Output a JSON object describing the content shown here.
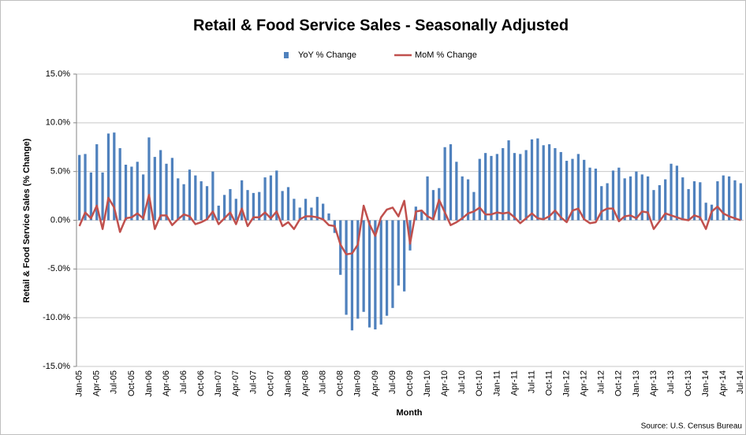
{
  "chart_data": {
    "type": "bar_line",
    "title": "Retail & Food Service Sales - Seasonally Adjusted",
    "x_label": "Month",
    "y_label": "Retail & Food Service Sales (% Change)",
    "source": "Source: U.S. Census Bureau",
    "categories": [
      "Jan-05",
      null,
      null,
      "Apr-05",
      null,
      null,
      "Jul-05",
      null,
      null,
      "Oct-05",
      null,
      null,
      "Jan-06",
      null,
      null,
      "Apr-06",
      null,
      null,
      "Jul-06",
      null,
      null,
      "Oct-06",
      null,
      null,
      "Jan-07",
      null,
      null,
      "Apr-07",
      null,
      null,
      "Jul-07",
      null,
      null,
      "Oct-07",
      null,
      null,
      "Jan-08",
      null,
      null,
      "Apr-08",
      null,
      null,
      "Jul-08",
      null,
      null,
      "Oct-08",
      null,
      null,
      "Jan-09",
      null,
      null,
      "Apr-09",
      null,
      null,
      "Jul-09",
      null,
      null,
      "Oct-09",
      null,
      null,
      "Jan-10",
      null,
      null,
      "Apr-10",
      null,
      null,
      "Jul-10",
      null,
      null,
      "Oct-10",
      null,
      null,
      "Jan-11",
      null,
      null,
      "Apr-11",
      null,
      null,
      "Jul-11",
      null,
      null,
      "Oct-11",
      null,
      null,
      "Jan-12",
      null,
      null,
      "Apr-12",
      null,
      null,
      "Jul-12",
      null,
      null,
      "Oct-12",
      null,
      null,
      "Jan-13",
      null,
      null,
      "Apr-13",
      null,
      null,
      "Jul-13",
      null,
      null,
      "Oct-13",
      null,
      null,
      "Jan-14",
      null,
      null,
      "Apr-14",
      null,
      null,
      "Jul-14"
    ],
    "series": [
      {
        "name": "YoY % Change",
        "kind": "bar",
        "color": "#4f81bd",
        "values": [
          6.7,
          6.8,
          4.9,
          7.8,
          4.9,
          8.9,
          9.0,
          7.4,
          5.7,
          5.5,
          6.0,
          4.7,
          8.5,
          6.5,
          7.2,
          5.8,
          6.4,
          4.3,
          3.7,
          5.2,
          4.6,
          4.0,
          3.5,
          5.0,
          1.5,
          2.6,
          3.2,
          2.2,
          4.1,
          3.1,
          2.8,
          2.9,
          4.4,
          4.6,
          5.1,
          3.0,
          3.4,
          2.2,
          1.3,
          2.2,
          1.3,
          2.4,
          1.7,
          0.7,
          -1.3,
          -5.6,
          -9.7,
          -11.3,
          -10.1,
          -9.4,
          -11.0,
          -11.2,
          -10.7,
          -9.8,
          -9.0,
          -6.7,
          -7.3,
          -3.1,
          1.4,
          1.0,
          4.5,
          3.1,
          3.3,
          7.5,
          7.8,
          6.0,
          4.5,
          4.2,
          2.9,
          6.3,
          6.9,
          6.6,
          6.8,
          7.4,
          8.2,
          6.9,
          6.8,
          7.2,
          8.3,
          8.4,
          7.7,
          7.8,
          7.4,
          7.0,
          6.1,
          6.3,
          6.8,
          6.2,
          5.4,
          5.3,
          3.5,
          3.8,
          5.1,
          5.4,
          4.3,
          4.5,
          5.0,
          4.7,
          4.5,
          3.1,
          3.6,
          4.2,
          5.8,
          5.6,
          4.4,
          3.2,
          4.0,
          3.9,
          1.8,
          1.6,
          4.0,
          4.6,
          4.5,
          4.1,
          3.8
        ]
      },
      {
        "name": "MoM % Change",
        "kind": "line",
        "color": "#c0504d",
        "values": [
          -0.6,
          0.8,
          0.2,
          1.5,
          -0.9,
          2.3,
          1.3,
          -1.2,
          0.2,
          0.3,
          0.7,
          0.2,
          2.6,
          -0.9,
          0.5,
          0.5,
          -0.5,
          0.1,
          0.6,
          0.4,
          -0.4,
          -0.2,
          0.1,
          0.9,
          -0.4,
          0.2,
          0.8,
          -0.4,
          1.2,
          -0.6,
          0.3,
          0.3,
          0.8,
          0.2,
          0.9,
          -0.6,
          -0.2,
          -0.9,
          0.1,
          0.4,
          0.4,
          0.3,
          0.1,
          -0.5,
          -0.6,
          -2.5,
          -3.5,
          -3.4,
          -2.5,
          1.5,
          -0.4,
          -1.6,
          0.3,
          1.1,
          1.3,
          0.4,
          2.0,
          -2.4,
          0.9,
          1.0,
          0.4,
          0.1,
          2.1,
          0.8,
          -0.5,
          -0.2,
          0.2,
          0.7,
          0.9,
          1.3,
          0.6,
          0.6,
          0.8,
          0.7,
          0.8,
          0.3,
          -0.3,
          0.2,
          0.7,
          0.2,
          0.1,
          0.4,
          1.0,
          0.3,
          -0.2,
          1.0,
          1.2,
          0.1,
          -0.3,
          -0.2,
          0.9,
          1.2,
          1.2,
          -0.1,
          0.4,
          0.5,
          0.2,
          0.9,
          0.8,
          -0.9,
          -0.1,
          0.7,
          0.5,
          0.3,
          0.1,
          0.0,
          0.5,
          0.3,
          -0.9,
          0.9,
          1.4,
          0.7,
          0.4,
          0.2,
          0.0
        ]
      }
    ],
    "ylim": [
      -15,
      15
    ],
    "yticks": [
      {
        "value": -15,
        "label": "-15.0%"
      },
      {
        "value": -10,
        "label": "-10.0%"
      },
      {
        "value": -5,
        "label": "-5.0%"
      },
      {
        "value": 0,
        "label": "0.0%"
      },
      {
        "value": 5,
        "label": "5.0%"
      },
      {
        "value": 10,
        "label": "10.0%"
      },
      {
        "value": 15,
        "label": "15.0%"
      }
    ],
    "grid": true,
    "legend": "top"
  }
}
